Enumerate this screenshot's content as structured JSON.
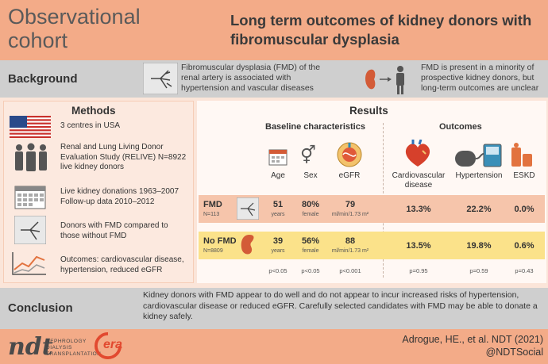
{
  "header": {
    "study_type": "Observational cohort",
    "title": "Long term outcomes of kidney donors with fibromuscular dysplasia"
  },
  "background": {
    "label": "Background",
    "text1": "Fibromuscular dysplasia (FMD) of the renal artery is associated with hypertension and vascular diseases",
    "text2": "FMD is present in a minority of prospective kidney donors, but long-term outcomes are unclear"
  },
  "methods": {
    "heading": "Methods",
    "items": [
      {
        "icon": "usa-flag-icon",
        "text": "3 centres in USA"
      },
      {
        "icon": "people-group-icon",
        "text": "Renal and Lung Living Donor Evaluation Study (RELIVE) N=8922 live kidney donors"
      },
      {
        "icon": "calendar-icon",
        "text": "Live kidney donations 1963–2007 Follow-up data 2010–2012"
      },
      {
        "icon": "renal-angiogram-icon",
        "text": "Donors with FMD compared to those without FMD"
      },
      {
        "icon": "trend-chart-icon",
        "text": "Outcomes: cardiovascular disease, hypertension, reduced eGFR"
      }
    ]
  },
  "results": {
    "heading": "Results",
    "baseline_heading": "Baseline characteristics",
    "outcomes_heading": "Outcomes",
    "columns": {
      "age": "Age",
      "sex": "Sex",
      "egfr": "eGFR",
      "cvd": "Cardiovascular disease",
      "htn": "Hypertension",
      "eskd": "ESKD"
    },
    "rows": [
      {
        "name": "FMD",
        "n": "N=113",
        "age": "51",
        "age_unit": "years",
        "sex": "80%",
        "sex_unit": "female",
        "egfr": "79",
        "egfr_unit": "ml/min/1.73 m²",
        "cvd": "13.3%",
        "htn": "22.2%",
        "eskd": "0.0%"
      },
      {
        "name": "No FMD",
        "n": "N=8809",
        "age": "39",
        "age_unit": "years",
        "sex": "56%",
        "sex_unit": "female",
        "egfr": "88",
        "egfr_unit": "ml/min/1.73 m²",
        "cvd": "13.5%",
        "htn": "19.8%",
        "eskd": "0.6%"
      }
    ],
    "pvalues": {
      "age": "p<0.05",
      "sex": "p<0.05",
      "egfr": "p<0.001",
      "cvd": "p=0.95",
      "htn": "p=0.59",
      "eskd": "p=0.43"
    }
  },
  "conclusion": {
    "label": "Conclusion",
    "text": "Kidney donors with FMD appear to do well and do not appear to incur increased risks of hypertension, cardiovascular disease or reduced eGFR. Carefully selected candidates with FMD may be able to donate a kidney safely."
  },
  "footer": {
    "citation": "Adrogue, HE., et al. NDT (2021)",
    "handle": "@NDTSocial",
    "ndt_logo": "ndt",
    "ndt_sub1": "NEPHROLOGY",
    "ndt_sub2": "DIALYSIS",
    "ndt_sub3": "TRANSPLANTATION",
    "era_logo": "era"
  },
  "colors": {
    "header": "#f3ab88",
    "band": "#cfcfcf",
    "fmd_row": "#f6c5ab",
    "nofmd_row": "#fbe28a"
  }
}
